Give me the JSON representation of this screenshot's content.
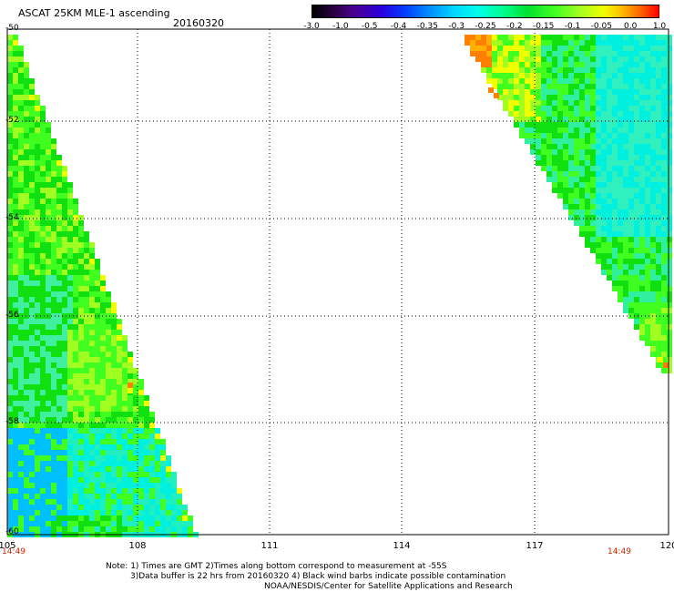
{
  "title": "ASCAT 25KM MLE-1 ascending",
  "date": "20160320",
  "colorbar": {
    "labels": [
      "-3.0",
      "-1.0",
      "-0.5",
      "-0.4",
      "-0.35",
      "-0.3",
      "-0.25",
      "-0.2",
      "-0.15",
      "-0.1",
      "-0.05",
      "0.0",
      "1.0"
    ]
  },
  "lat_labels": [
    "-50",
    "-52",
    "-54",
    "-56",
    "-58",
    "-60"
  ],
  "lon_labels": [
    "105",
    "108",
    "111",
    "114",
    "117",
    "120"
  ],
  "time_left": "14:49",
  "time_right": "14:49",
  "notes": {
    "line1": "Note: 1) Times are GMT 2)Times along bottom correspond to measurement at -55S",
    "line2": "3)Data buffer is 22 hrs from 20160320 4) Black wind barbs indicate possible contamination",
    "line3": "NOAA/NESDIS/Center for Satellite Applications and Research"
  },
  "colors": {
    "green": "#10e010",
    "lime": "#40ff20",
    "yellowgreen": "#a0ff20",
    "yellow": "#f0ff00",
    "orange": "#ff8000",
    "cyan": "#00f0e0",
    "blue": "#00c0ff",
    "grid": "#000000"
  }
}
